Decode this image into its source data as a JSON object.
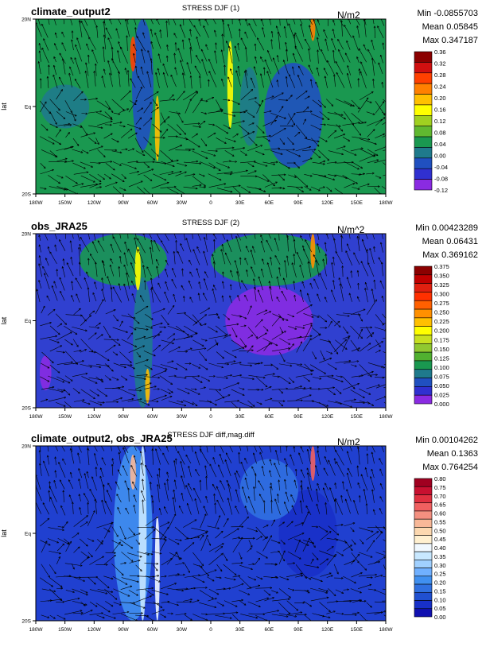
{
  "chart_data": [
    {
      "type": "heatmap",
      "left_title": "climate_output2",
      "center_title": "STRESS DJF (1)",
      "units": "N/m2",
      "stats": [
        "Min -0.0855703",
        "Mean 0.05845",
        "Max 0.347187"
      ],
      "ylabel": "lat",
      "xticks": [
        "180W",
        "150W",
        "120W",
        "90W",
        "60W",
        "30W",
        "0",
        "30E",
        "60E",
        "90E",
        "120E",
        "150E",
        "180W"
      ],
      "yticks": [
        "20N",
        "Eq",
        "20S"
      ],
      "xlim": [
        -180,
        180
      ],
      "ylim": [
        -20,
        20
      ],
      "colorbar": {
        "labels": [
          "0.36",
          "0.32",
          "0.28",
          "0.24",
          "0.20",
          "0.16",
          "0.12",
          "0.08",
          "0.04",
          "0.00",
          "-0.04",
          "-0.08",
          "-0.12"
        ],
        "colors": [
          "#8b0000",
          "#d01010",
          "#ff4000",
          "#ff8000",
          "#ffc000",
          "#ffff00",
          "#a0d020",
          "#60b830",
          "#1a9850",
          "#1f7a8c",
          "#2050c0",
          "#3030d0",
          "#8a2be2"
        ]
      },
      "background": "#1a9850",
      "features": [
        {
          "lon": -70,
          "lat": 5,
          "width": 22,
          "height": 30,
          "color": "#2050c0"
        },
        {
          "lon": 85,
          "lat": -2,
          "width": 60,
          "height": 24,
          "color": "#2050c0"
        },
        {
          "lon": 40,
          "lat": 0,
          "width": 20,
          "height": 18,
          "color": "#1f7a8c"
        },
        {
          "lon": -150,
          "lat": 0,
          "width": 50,
          "height": 10,
          "color": "#1f7a8c"
        },
        {
          "lon": -80,
          "lat": 12,
          "width": 6,
          "height": 8,
          "color": "#ff4000"
        },
        {
          "lon": 105,
          "lat": 18,
          "width": 5,
          "height": 6,
          "color": "#ff8000"
        },
        {
          "lon": 20,
          "lat": 5,
          "width": 6,
          "height": 20,
          "color": "#ffff00"
        },
        {
          "lon": -55,
          "lat": -5,
          "width": 5,
          "height": 15,
          "color": "#ffc000"
        }
      ]
    },
    {
      "type": "heatmap",
      "left_title": "obs_JRA25",
      "center_title": "STRESS DJF (2)",
      "units": "N/m^2",
      "stats": [
        "Min 0.00423289",
        "Mean 0.06431",
        "Max 0.369162"
      ],
      "ylabel": "lat",
      "xticks": [
        "180W",
        "150W",
        "120W",
        "90W",
        "60W",
        "30W",
        "0",
        "30E",
        "60E",
        "90E",
        "120E",
        "150E",
        "180W"
      ],
      "yticks": [
        "20N",
        "Eq",
        "20S"
      ],
      "xlim": [
        -180,
        180
      ],
      "ylim": [
        -20,
        20
      ],
      "colorbar": {
        "labels": [
          "0.375",
          "0.350",
          "0.325",
          "0.300",
          "0.275",
          "0.250",
          "0.225",
          "0.200",
          "0.175",
          "0.150",
          "0.125",
          "0.100",
          "0.075",
          "0.050",
          "0.025",
          "0.000"
        ],
        "colors": [
          "#8b0000",
          "#c00000",
          "#e02010",
          "#ff3000",
          "#ff6000",
          "#ff9000",
          "#ffc000",
          "#ffff00",
          "#c8e020",
          "#90c830",
          "#50b030",
          "#1a9850",
          "#1f7a8c",
          "#2050c0",
          "#3030d0",
          "#8a2be2"
        ]
      },
      "background": "#3040d0",
      "features": [
        {
          "lon": -90,
          "lat": 14,
          "width": 90,
          "height": 12,
          "color": "#1a9850"
        },
        {
          "lon": 60,
          "lat": 14,
          "width": 120,
          "height": 12,
          "color": "#1a9850"
        },
        {
          "lon": 60,
          "lat": 0,
          "width": 90,
          "height": 16,
          "color": "#8a2be2"
        },
        {
          "lon": -70,
          "lat": -5,
          "width": 20,
          "height": 30,
          "color": "#1f7a8c"
        },
        {
          "lon": -75,
          "lat": 12,
          "width": 6,
          "height": 10,
          "color": "#ffff00"
        },
        {
          "lon": 105,
          "lat": 16,
          "width": 5,
          "height": 8,
          "color": "#ff9000"
        },
        {
          "lon": -65,
          "lat": -15,
          "width": 5,
          "height": 8,
          "color": "#ffc000"
        },
        {
          "lon": -170,
          "lat": -12,
          "width": 12,
          "height": 8,
          "color": "#8a2be2"
        }
      ]
    },
    {
      "type": "heatmap",
      "left_title": "climate_output2, obs_JRA25",
      "center_title": "STRESS DJF diff,mag.diff",
      "units": "N/m2",
      "stats": [
        "Min 0.00104262",
        "Mean 0.1363",
        "Max 0.764254"
      ],
      "ylabel": "lat",
      "xticks": [
        "180W",
        "150W",
        "120W",
        "90W",
        "60W",
        "30W",
        "0",
        "30E",
        "60E",
        "90E",
        "120E",
        "150E",
        "180W"
      ],
      "yticks": [
        "20N",
        "Eq",
        "20S"
      ],
      "xlim": [
        -180,
        180
      ],
      "ylim": [
        -20,
        20
      ],
      "colorbar": {
        "labels": [
          "0.80",
          "0.75",
          "0.70",
          "0.65",
          "0.60",
          "0.55",
          "0.50",
          "0.45",
          "0.40",
          "0.35",
          "0.30",
          "0.25",
          "0.20",
          "0.15",
          "0.10",
          "0.05",
          "0.00"
        ],
        "colors": [
          "#a00020",
          "#c81030",
          "#e03040",
          "#f06060",
          "#f49080",
          "#f8b898",
          "#fcd8b0",
          "#fff0d0",
          "#f0f8ff",
          "#c8e8ff",
          "#a0d0ff",
          "#70b0ff",
          "#4090f0",
          "#3070e0",
          "#2050d0",
          "#1830c8",
          "#1010b0"
        ]
      },
      "background": "#2040d0",
      "features": [
        {
          "lon": -80,
          "lat": 0,
          "width": 40,
          "height": 40,
          "color": "#4090f0"
        },
        {
          "lon": -70,
          "lat": 0,
          "width": 8,
          "height": 40,
          "color": "#c8e8ff"
        },
        {
          "lon": -55,
          "lat": -8,
          "width": 5,
          "height": 24,
          "color": "#f0f8ff"
        },
        {
          "lon": -80,
          "lat": 14,
          "width": 6,
          "height": 8,
          "color": "#f8b898"
        },
        {
          "lon": 105,
          "lat": 16,
          "width": 5,
          "height": 8,
          "color": "#f06060"
        },
        {
          "lon": 100,
          "lat": 0,
          "width": 60,
          "height": 20,
          "color": "#1830c8"
        },
        {
          "lon": 60,
          "lat": 10,
          "width": 60,
          "height": 14,
          "color": "#3070e0"
        }
      ]
    }
  ]
}
